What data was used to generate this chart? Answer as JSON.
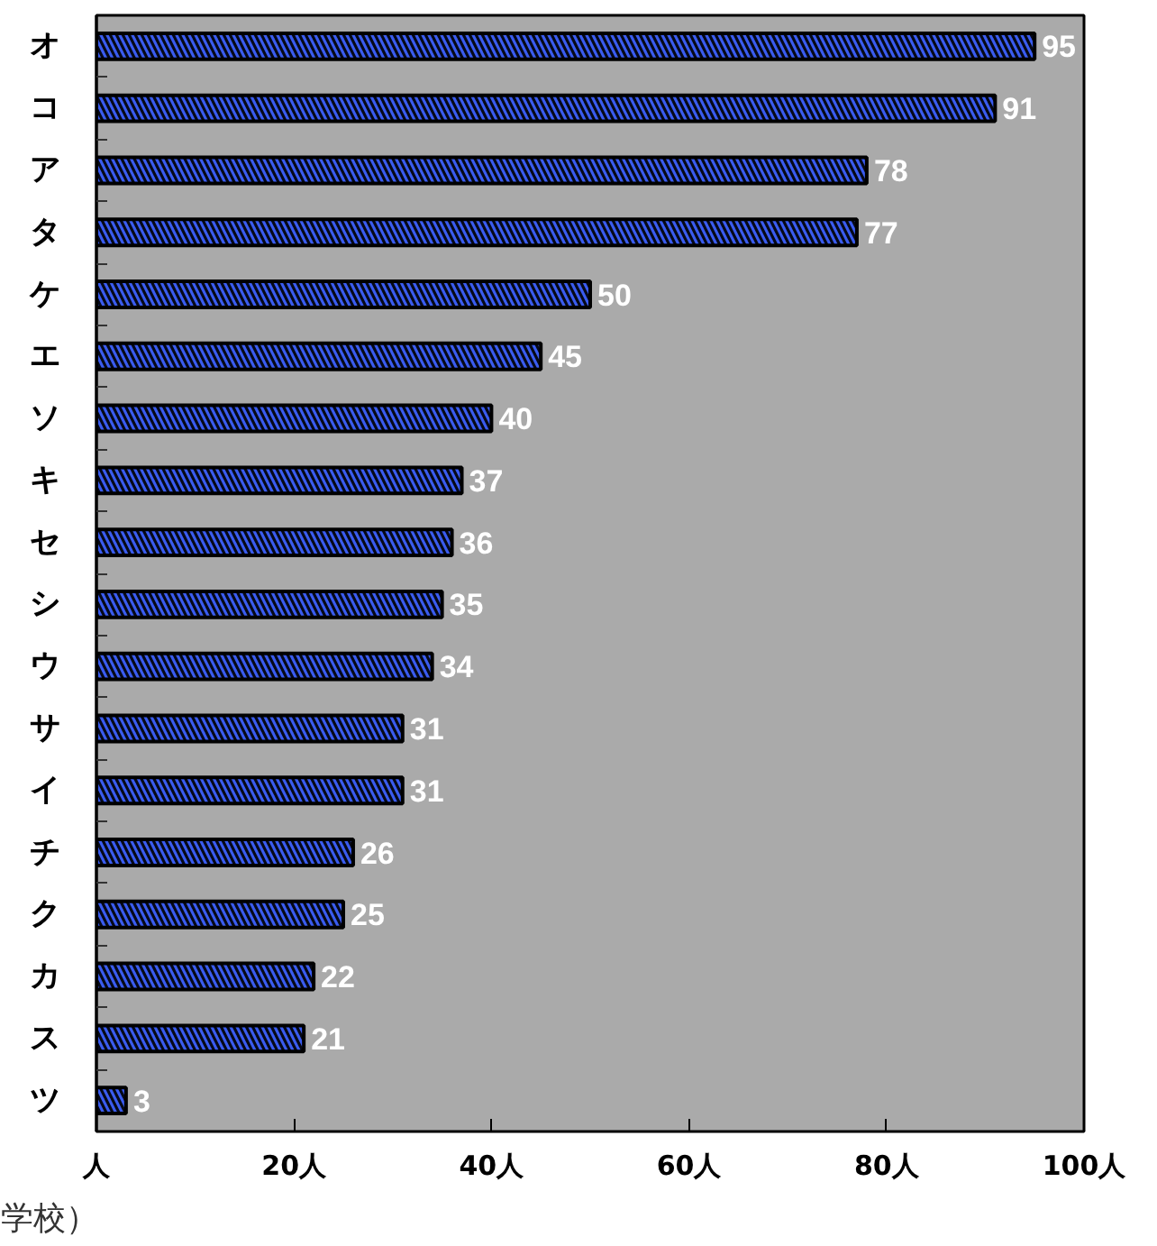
{
  "chart_data": {
    "type": "bar",
    "orientation": "horizontal",
    "categories": [
      "オ",
      "コ",
      "ア",
      "タ",
      "ケ",
      "エ",
      "ソ",
      "キ",
      "セ",
      "シ",
      "ウ",
      "サ",
      "イ",
      "チ",
      "ク",
      "カ",
      "ス",
      "ツ"
    ],
    "values": [
      95,
      91,
      78,
      77,
      50,
      45,
      40,
      37,
      36,
      35,
      34,
      31,
      31,
      26,
      25,
      22,
      21,
      3
    ],
    "color": "#3a5cf0",
    "xlim": [
      0,
      100
    ],
    "xticks": [
      {
        "value": 0,
        "label": "人"
      },
      {
        "value": 20,
        "label": "20人"
      },
      {
        "value": 40,
        "label": "40人"
      },
      {
        "value": 60,
        "label": "60人"
      },
      {
        "value": 80,
        "label": "80人"
      },
      {
        "value": 100,
        "label": "100人"
      }
    ],
    "data_labels": true,
    "annotations": [
      "学校）"
    ]
  }
}
